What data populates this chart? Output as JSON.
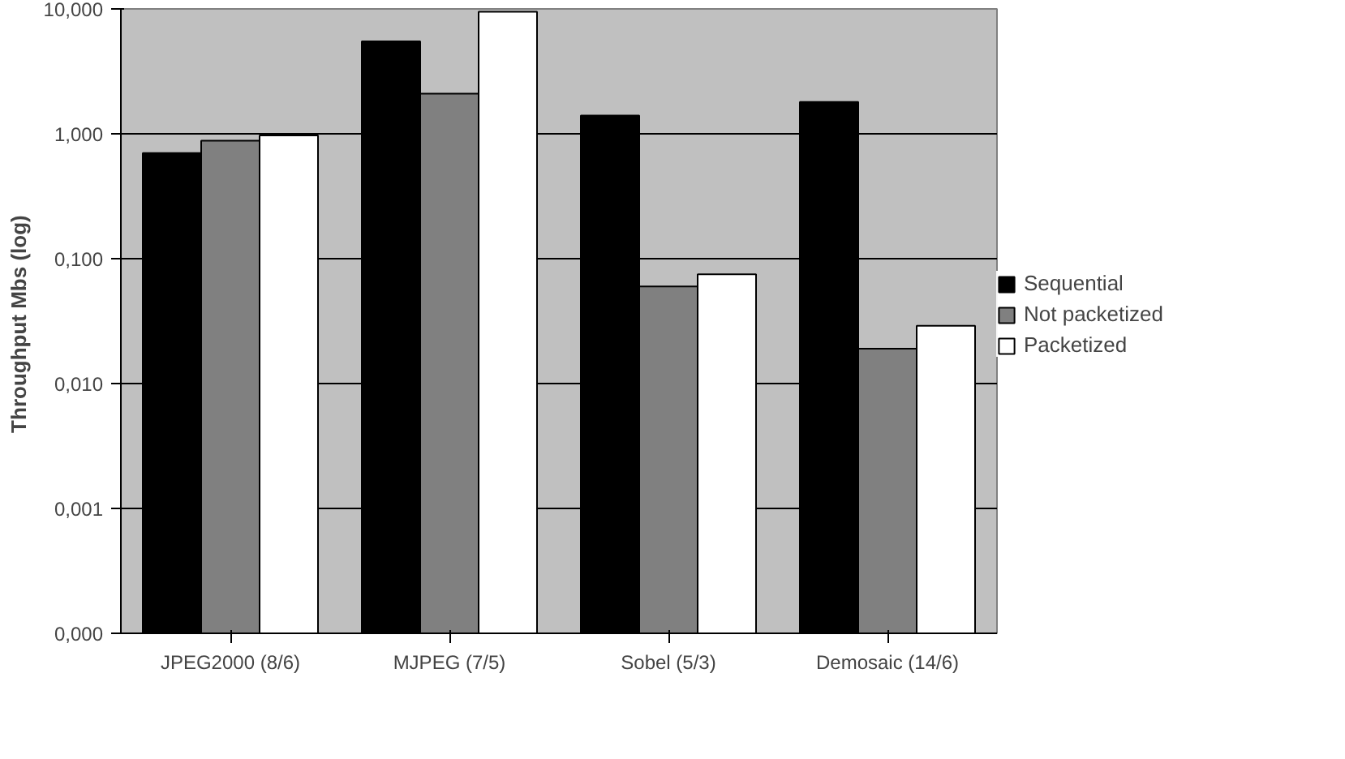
{
  "chart_data": {
    "type": "bar",
    "ylabel": "Throughput  Mbs (log)",
    "categories": [
      "JPEG2000 (8/6)",
      "MJPEG (7/5)",
      "Sobel (5/3)",
      "Demosaic (14/6)"
    ],
    "series": [
      {
        "name": "Sequential",
        "color": "#000000",
        "values": [
          0.7,
          5.5,
          1.4,
          1.8
        ]
      },
      {
        "name": "Not packetized",
        "color": "#808080",
        "values": [
          0.88,
          2.1,
          0.06,
          0.019
        ]
      },
      {
        "name": "Packetized",
        "color": "#ffffff",
        "values": [
          0.97,
          9.5,
          0.075,
          0.029
        ]
      }
    ],
    "log": "y",
    "ylim": [
      0.0001,
      10
    ],
    "yticks": [
      {
        "value": 0.0001,
        "label": "0,000"
      },
      {
        "value": 0.001,
        "label": "0,001"
      },
      {
        "value": 0.01,
        "label": "0,010"
      },
      {
        "value": 0.1,
        "label": "0,100"
      },
      {
        "value": 1,
        "label": "1,000"
      },
      {
        "value": 10,
        "label": "10,000"
      }
    ],
    "grid": "y",
    "legend": "right"
  }
}
